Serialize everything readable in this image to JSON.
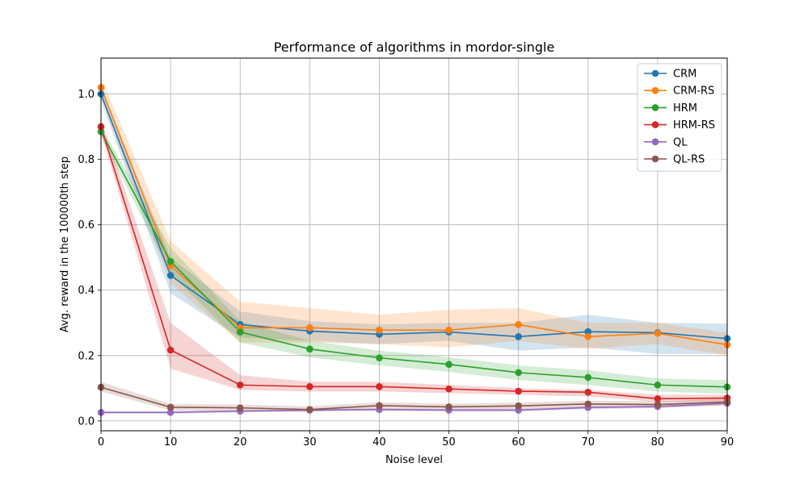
{
  "chart_data": {
    "type": "line",
    "title": "Performance of algorithms in mordor-single",
    "xlabel": "Noise level",
    "ylabel": "Avg. reward in the 100000th step",
    "xlim": [
      0,
      90
    ],
    "ylim": [
      -0.03,
      1.11
    ],
    "x_ticks": [
      "0",
      "10",
      "20",
      "30",
      "40",
      "50",
      "60",
      "70",
      "80",
      "90"
    ],
    "y_ticks": [
      "0.0",
      "0.2",
      "0.4",
      "0.6",
      "0.8",
      "1.0"
    ],
    "grid": true,
    "legend_position": "top-right",
    "x": [
      0,
      10,
      20,
      30,
      40,
      50,
      60,
      70,
      80,
      90
    ],
    "series": [
      {
        "name": "CRM",
        "color": "#1f77b4",
        "values": [
          1.0,
          0.445,
          0.295,
          0.275,
          0.265,
          0.272,
          0.258,
          0.273,
          0.27,
          0.252
        ],
        "lower": [
          0.98,
          0.39,
          0.255,
          0.245,
          0.235,
          0.245,
          0.215,
          0.225,
          0.205,
          0.205
        ],
        "upper": [
          1.02,
          0.5,
          0.335,
          0.305,
          0.295,
          0.3,
          0.3,
          0.325,
          0.3,
          0.298
        ]
      },
      {
        "name": "CRM-RS",
        "color": "#ff7f0e",
        "values": [
          1.02,
          0.475,
          0.285,
          0.285,
          0.278,
          0.278,
          0.295,
          0.258,
          0.268,
          0.233
        ],
        "lower": [
          0.99,
          0.42,
          0.24,
          0.24,
          0.235,
          0.225,
          0.245,
          0.22,
          0.235,
          0.2
        ],
        "upper": [
          1.05,
          0.55,
          0.365,
          0.345,
          0.325,
          0.34,
          0.345,
          0.3,
          0.3,
          0.27
        ]
      },
      {
        "name": "HRM",
        "color": "#2ca02c",
        "values": [
          0.885,
          0.488,
          0.272,
          0.22,
          0.193,
          0.173,
          0.148,
          0.133,
          0.11,
          0.104
        ],
        "lower": [
          0.87,
          0.45,
          0.24,
          0.195,
          0.17,
          0.15,
          0.125,
          0.11,
          0.09,
          0.083
        ],
        "upper": [
          0.9,
          0.53,
          0.305,
          0.245,
          0.215,
          0.195,
          0.17,
          0.155,
          0.13,
          0.125
        ]
      },
      {
        "name": "HRM-RS",
        "color": "#d62728",
        "values": [
          0.9,
          0.217,
          0.11,
          0.105,
          0.105,
          0.098,
          0.091,
          0.088,
          0.068,
          0.07
        ],
        "lower": [
          0.88,
          0.16,
          0.095,
          0.09,
          0.09,
          0.085,
          0.08,
          0.075,
          0.058,
          0.06
        ],
        "upper": [
          0.92,
          0.3,
          0.14,
          0.12,
          0.12,
          0.11,
          0.1,
          0.095,
          0.08,
          0.08
        ]
      },
      {
        "name": "QL",
        "color": "#9467bd",
        "values": [
          0.026,
          0.026,
          0.03,
          0.033,
          0.035,
          0.033,
          0.033,
          0.041,
          0.044,
          0.054
        ],
        "lower": [
          0.022,
          0.022,
          0.026,
          0.029,
          0.031,
          0.029,
          0.029,
          0.036,
          0.039,
          0.048
        ],
        "upper": [
          0.03,
          0.03,
          0.034,
          0.037,
          0.039,
          0.037,
          0.037,
          0.046,
          0.049,
          0.06
        ]
      },
      {
        "name": "QL-RS",
        "color": "#8c564b",
        "values": [
          0.103,
          0.042,
          0.04,
          0.035,
          0.047,
          0.043,
          0.046,
          0.052,
          0.05,
          0.058
        ],
        "lower": [
          0.09,
          0.032,
          0.03,
          0.028,
          0.037,
          0.033,
          0.036,
          0.042,
          0.04,
          0.048
        ],
        "upper": [
          0.12,
          0.052,
          0.05,
          0.045,
          0.057,
          0.053,
          0.056,
          0.062,
          0.06,
          0.068
        ]
      }
    ]
  }
}
